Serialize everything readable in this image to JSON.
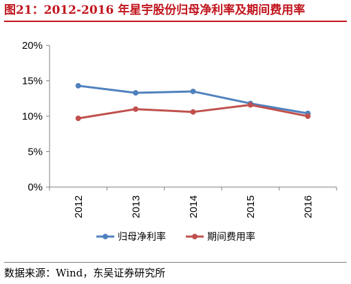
{
  "title": "图21：2012-2016 年星宇股份归母净利率及期间费用率",
  "source": "数据来源：Wind，东吴证券研究所",
  "chart_data": {
    "type": "line",
    "categories": [
      "2012",
      "2013",
      "2014",
      "2015",
      "2016"
    ],
    "series": [
      {
        "name": "归母净利率",
        "color": "#4f81bd",
        "values": [
          14.3,
          13.3,
          13.5,
          11.8,
          10.4
        ]
      },
      {
        "name": "期间费用率",
        "color": "#c0504d",
        "values": [
          9.7,
          11.0,
          10.6,
          11.6,
          10.0
        ]
      }
    ],
    "ylim": [
      0,
      20
    ],
    "yticks": [
      "0%",
      "5%",
      "10%",
      "15%",
      "20%"
    ],
    "grid": false,
    "legend": "bottom"
  }
}
